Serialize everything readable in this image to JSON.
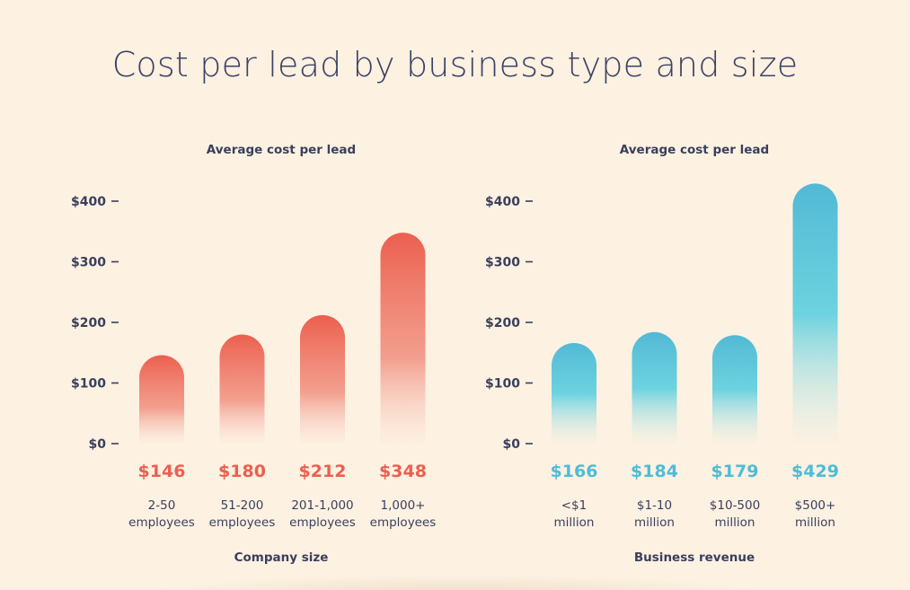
{
  "title": "Cost per lead by business type and size",
  "chart_data": [
    {
      "type": "bar",
      "title": "Average cost per lead",
      "xlabel": "Company size",
      "ylabel": "",
      "ylim": [
        0,
        400
      ],
      "yticks": [
        "$0",
        "$100",
        "$200",
        "$300",
        "$400"
      ],
      "categories": [
        [
          "2-50",
          "employees"
        ],
        [
          "51-200",
          "employees"
        ],
        [
          "201-1,000",
          "employees"
        ],
        [
          "1,000+",
          "employees"
        ]
      ],
      "values": [
        146,
        180,
        212,
        348
      ],
      "value_labels": [
        "$146",
        "$180",
        "$212",
        "$348"
      ],
      "color": "#ec5f4e",
      "grid": false,
      "legend": "none"
    },
    {
      "type": "bar",
      "title": "Average cost per lead",
      "xlabel": "Business revenue",
      "ylabel": "",
      "ylim": [
        0,
        400
      ],
      "yticks": [
        "$0",
        "$100",
        "$200",
        "$300",
        "$400"
      ],
      "categories": [
        [
          "<$1",
          "million"
        ],
        [
          "$1-10",
          "million"
        ],
        [
          "$10-500",
          "million"
        ],
        [
          "$500+",
          "million"
        ]
      ],
      "values": [
        166,
        184,
        179,
        429
      ],
      "value_labels": [
        "$166",
        "$184",
        "$179",
        "$429"
      ],
      "color": "#4fbcd6",
      "grid": false,
      "legend": "none"
    }
  ]
}
